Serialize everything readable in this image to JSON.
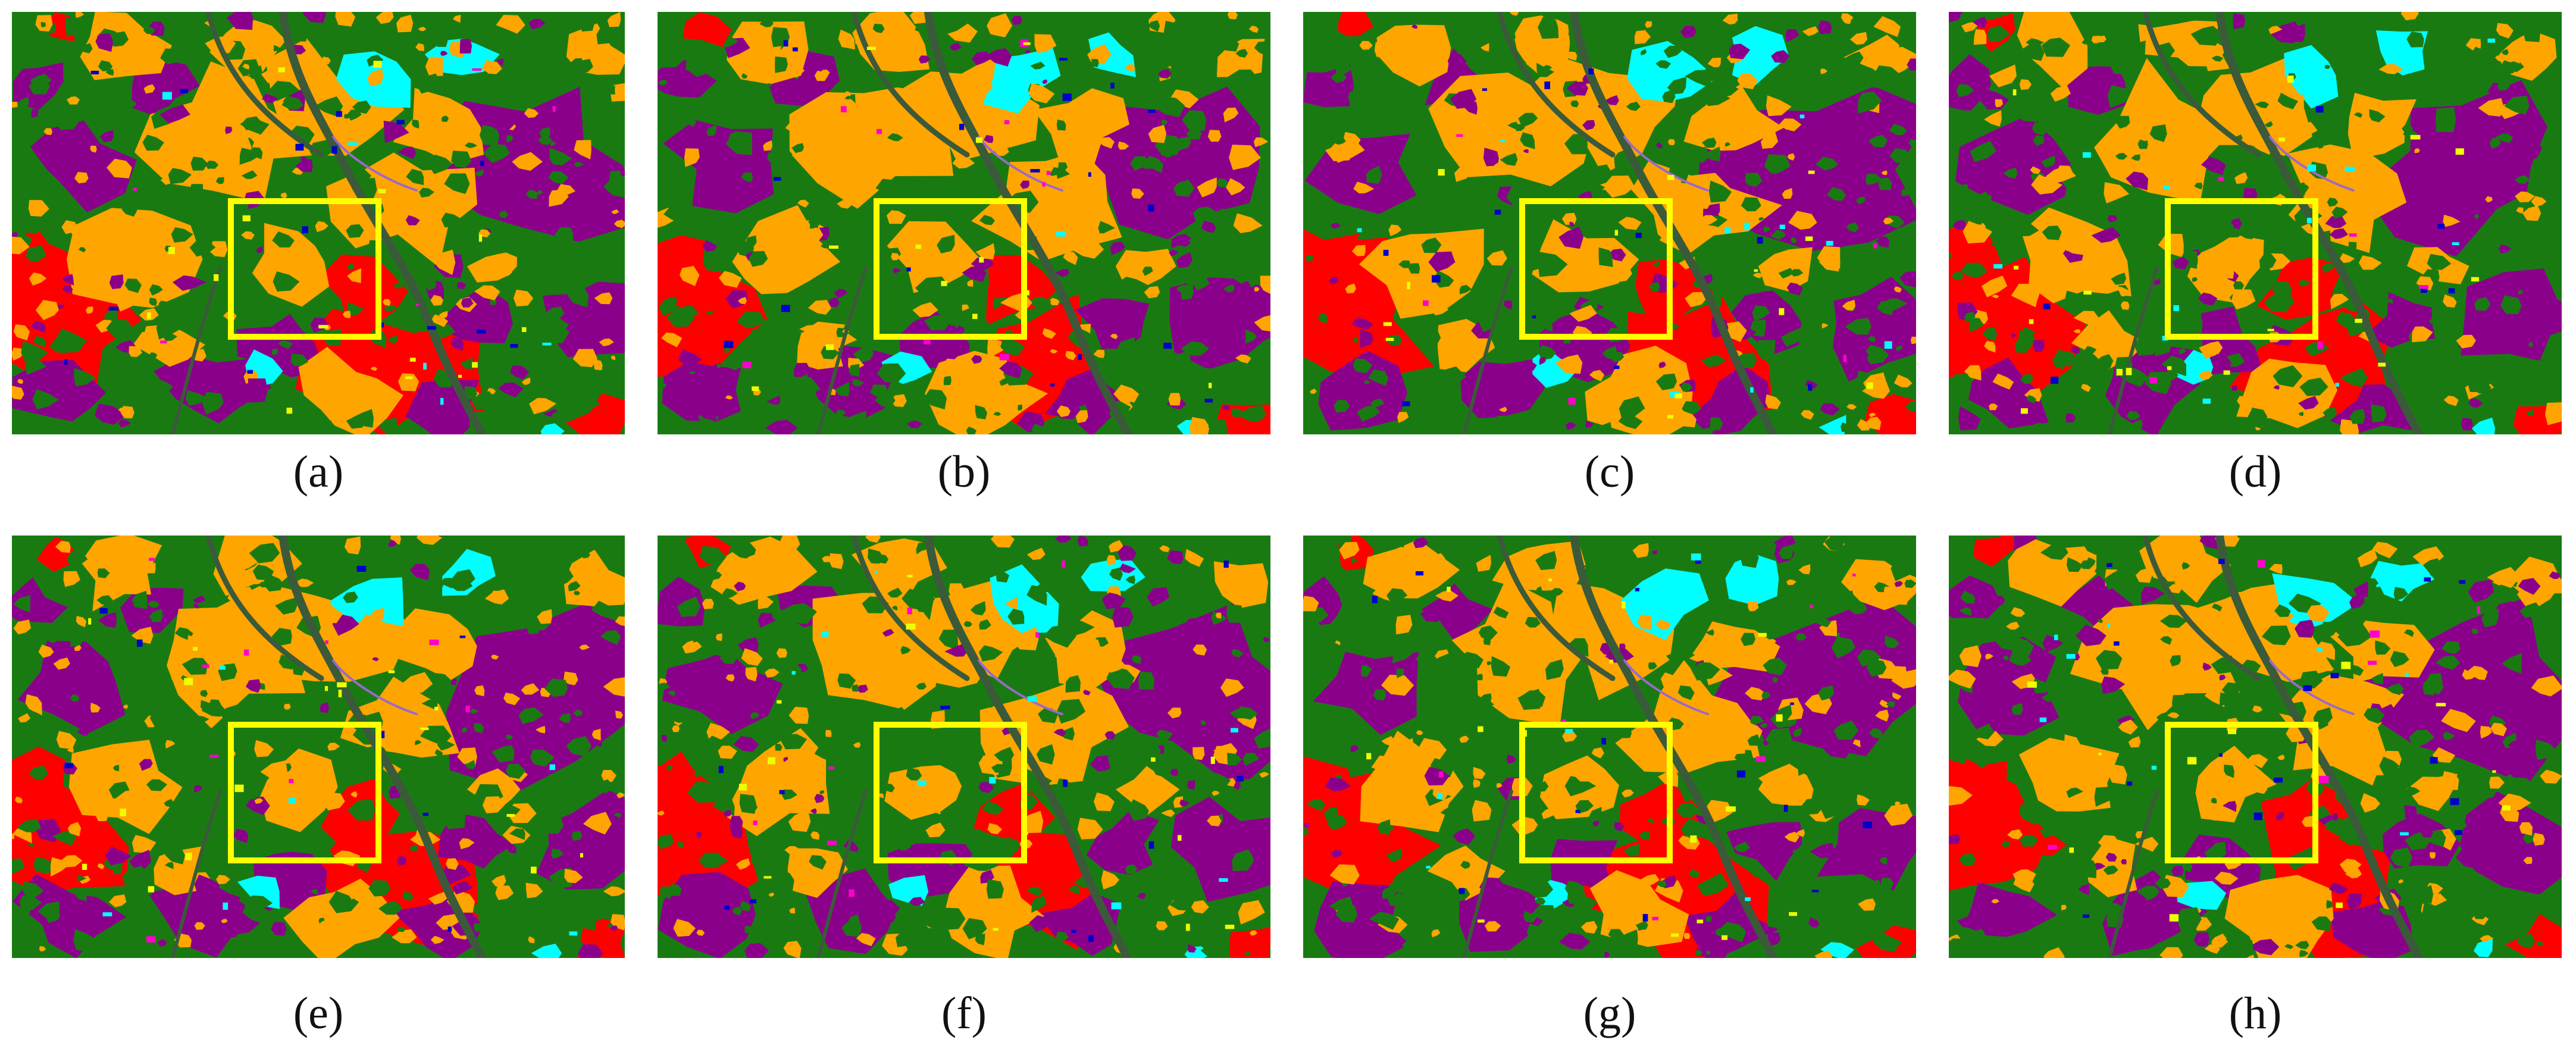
{
  "figure": {
    "panels": [
      {
        "id": "a",
        "caption": "(a)"
      },
      {
        "id": "b",
        "caption": "(b)"
      },
      {
        "id": "c",
        "caption": "(c)"
      },
      {
        "id": "d",
        "caption": "(d)"
      },
      {
        "id": "e",
        "caption": "(e)"
      },
      {
        "id": "f",
        "caption": "(f)"
      },
      {
        "id": "g",
        "caption": "(g)"
      },
      {
        "id": "h",
        "caption": "(h)"
      }
    ],
    "colors": {
      "vegetation": "#1a7a12",
      "urban": "#ffa500",
      "industrial": "#8b008b",
      "bare": "#ff0000",
      "water": "#00ffff",
      "river": "#3a5a3a",
      "highlight": "#ffff00",
      "accent_blue": "#0000cc",
      "accent_yellow": "#eeff00",
      "accent_magenta": "#ff00cc"
    }
  }
}
